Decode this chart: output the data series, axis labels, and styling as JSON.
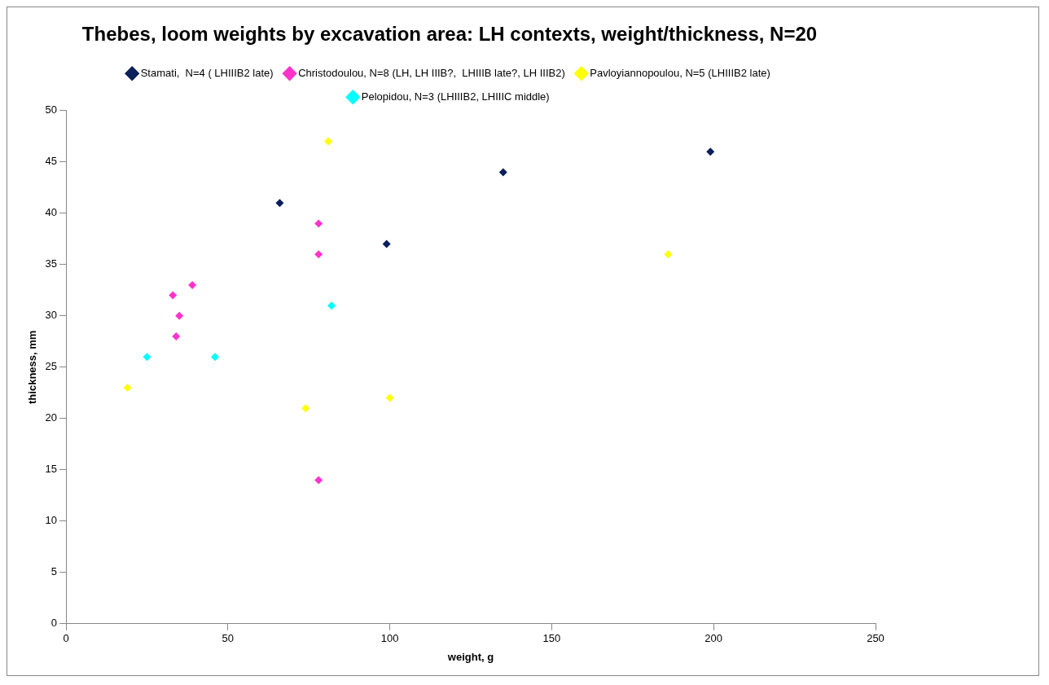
{
  "chart_data": {
    "type": "scatter",
    "title": "Thebes, loom weights by excavation area: LH contexts, weight/thickness, N=20",
    "xlabel": "weight, g",
    "ylabel": "thickness, mm",
    "xlim": [
      0,
      250
    ],
    "xticks": [
      0,
      50,
      100,
      150,
      200,
      250
    ],
    "ylim": [
      0,
      50
    ],
    "yticks": [
      0,
      5,
      10,
      15,
      20,
      25,
      30,
      35,
      40,
      45,
      50
    ],
    "grid": false,
    "legend": "top",
    "marker": "diamond",
    "series": [
      {
        "name": "Stamati,  N=4 ( LHIIIB2 late)",
        "color": "#0a1f5c",
        "x": [
          66,
          99,
          135,
          199
        ],
        "values": [
          41,
          37,
          44,
          46
        ]
      },
      {
        "name": "Christodoulou, N=8 (LH, LH IIIB?,  LHIIIB late?, LH IIIB2)",
        "color": "#ff33cc",
        "x": [
          78,
          78,
          33,
          39,
          35,
          34,
          78
        ],
        "values": [
          39,
          36,
          32,
          33,
          30,
          28,
          14
        ]
      },
      {
        "name": "Pavloyiannopoulou, N=5 (LHIIIB2 late)",
        "color": "#ffff00",
        "x": [
          81,
          19,
          74,
          100,
          186
        ],
        "values": [
          47,
          23,
          21,
          22,
          36
        ]
      },
      {
        "name": "Pelopidou, N=3 (LHIIIB2, LHIIIC middle)",
        "color": "#00ffff",
        "x": [
          25,
          46,
          82
        ],
        "values": [
          26,
          26,
          31
        ]
      }
    ]
  }
}
